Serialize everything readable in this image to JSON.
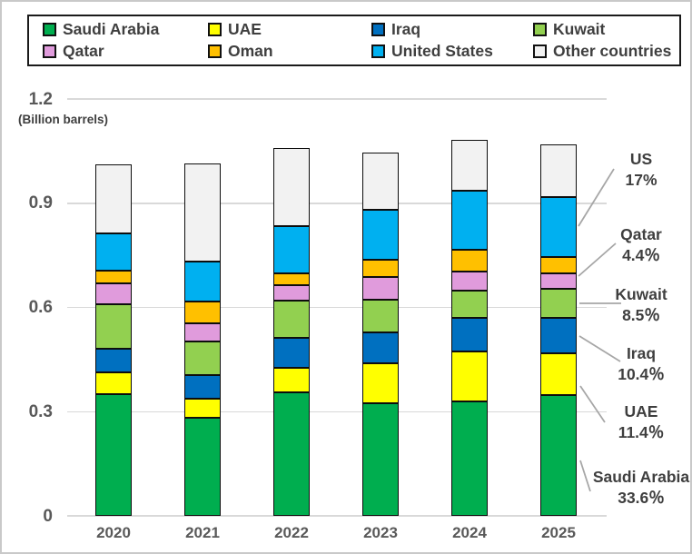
{
  "window": {
    "background": "#FFFFFF",
    "frame_border_color": "#C9C9C9"
  },
  "axis": {
    "unit_label": "(Billion barrels)",
    "yticks": [
      {
        "label": "0",
        "value": 0
      },
      {
        "label": "0.3",
        "value": 0.3
      },
      {
        "label": "0.6",
        "value": 0.6
      },
      {
        "label": "0.9",
        "value": 0.9
      },
      {
        "label": "1.2",
        "value": 1.2
      }
    ]
  },
  "chart_data": {
    "type": "bar",
    "stacked": true,
    "title": "",
    "ylabel": "(Billion barrels)",
    "ylim": [
      0,
      1.2
    ],
    "grid": true,
    "legend_position": "top",
    "categories": [
      "2020",
      "2021",
      "2022",
      "2023",
      "2024",
      "2025"
    ],
    "series": [
      {
        "name": "Saudi Arabia",
        "color": "#00AE4F",
        "values": [
          0.35,
          0.282,
          0.355,
          0.325,
          0.33,
          0.348
        ]
      },
      {
        "name": "UAE",
        "color": "#FFFF00",
        "values": [
          0.063,
          0.055,
          0.071,
          0.115,
          0.144,
          0.12
        ]
      },
      {
        "name": "Iraq",
        "color": "#0070C0",
        "values": [
          0.068,
          0.068,
          0.086,
          0.089,
          0.097,
          0.102
        ]
      },
      {
        "name": "Kuwait",
        "color": "#92D050",
        "values": [
          0.128,
          0.097,
          0.107,
          0.094,
          0.078,
          0.084
        ]
      },
      {
        "name": "Qatar",
        "color": "#E09BDC",
        "values": [
          0.06,
          0.052,
          0.044,
          0.065,
          0.055,
          0.044
        ]
      },
      {
        "name": "Oman",
        "color": "#FFC000",
        "values": [
          0.037,
          0.063,
          0.034,
          0.05,
          0.063,
          0.047
        ]
      },
      {
        "name": "United States",
        "color": "#00B0F0",
        "values": [
          0.107,
          0.115,
          0.136,
          0.144,
          0.17,
          0.172
        ]
      },
      {
        "name": "Other countries",
        "color": "#F2F2F2",
        "values": [
          0.199,
          0.282,
          0.225,
          0.165,
          0.146,
          0.152
        ]
      }
    ],
    "annotations": [
      {
        "label": "US",
        "pct": "17%"
      },
      {
        "label": "Qatar",
        "pct": "4.4％"
      },
      {
        "label": "Kuwait",
        "pct": "8.5％"
      },
      {
        "label": "Iraq",
        "pct": "10.4％"
      },
      {
        "label": "UAE",
        "pct": "11.4％"
      },
      {
        "label": "Saudi Arabia",
        "pct": "33.6％"
      }
    ]
  },
  "colors": {
    "grid": "#D9D9D9",
    "axis_text": "#595959",
    "legend_text": "#3F3F3F",
    "leader_line": "#A6A6A6",
    "segment_border": "#0D0D0D"
  }
}
